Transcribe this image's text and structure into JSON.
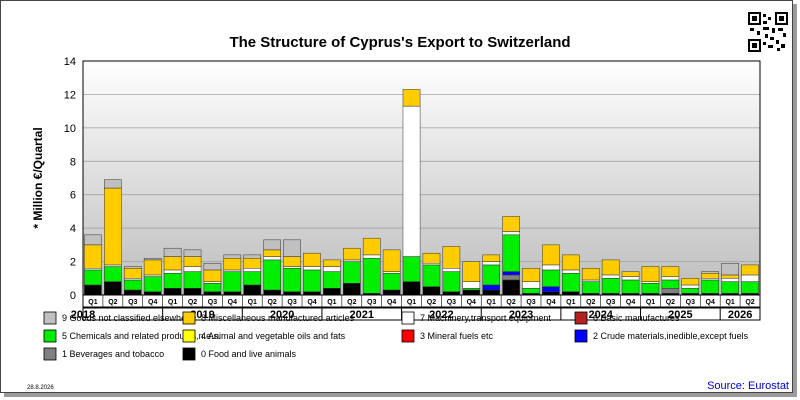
{
  "chart_data": {
    "type": "bar",
    "stacked": true,
    "title": "The Structure of Cyprus's Export to Switzerland",
    "ylabel": "* Million €/Quartal",
    "ylim": [
      0,
      14
    ],
    "yticks": [
      0,
      2,
      4,
      6,
      8,
      10,
      12,
      14
    ],
    "grid": true,
    "legend_position": "bottom",
    "categories": [
      "2018 Q1",
      "2018 Q2",
      "2018 Q3",
      "2018 Q4",
      "2019 Q1",
      "2019 Q2",
      "2019 Q3",
      "2019 Q4",
      "2020 Q1",
      "2020 Q2",
      "2020 Q3",
      "2020 Q4",
      "2021 Q1",
      "2021 Q2",
      "2021 Q3",
      "2021 Q4",
      "2022 Q1",
      "2022 Q2",
      "2022 Q3",
      "2022 Q4",
      "2023 Q1",
      "2023 Q2",
      "2023 Q3",
      "2023 Q4",
      "2024 Q1",
      "2024 Q2",
      "2024 Q3",
      "2024 Q4",
      "2025 Q1",
      "2025 Q2",
      "2025 Q3",
      "2025 Q4",
      "2026 Q1",
      "2026 Q2"
    ],
    "quarter_labels": [
      "Q1",
      "Q2",
      "Q3",
      "Q4",
      "Q1",
      "Q2",
      "Q3",
      "Q4",
      "Q1",
      "Q2",
      "Q3",
      "Q4",
      "Q1",
      "Q2",
      "Q3",
      "Q4",
      "Q1",
      "Q2",
      "Q3",
      "Q4",
      "Q1",
      "Q2",
      "Q3",
      "Q4",
      "Q1",
      "Q2",
      "Q3",
      "Q4",
      "Q1",
      "Q2",
      "Q3",
      "Q4",
      "Q1",
      "Q2"
    ],
    "years": [
      "2018",
      "2019",
      "2020",
      "2021",
      "2022",
      "2023",
      "2024",
      "2025",
      "2026"
    ],
    "series": [
      {
        "name": "0 Food and live animals",
        "color": "#000000",
        "values": [
          0.6,
          0.8,
          0.3,
          0.2,
          0.4,
          0.4,
          0.2,
          0.2,
          0.6,
          0.3,
          0.2,
          0.2,
          0.4,
          0.7,
          0.1,
          0.3,
          0.8,
          0.5,
          0.2,
          0.3,
          0.3,
          0.9,
          0.1,
          0.2,
          0.2,
          0.1,
          0.1,
          0.1,
          0.1,
          0.1,
          0.1,
          0.1,
          0.1,
          0.1
        ]
      },
      {
        "name": "1 Beverages and tobacco",
        "color": "#808080",
        "values": [
          0,
          0,
          0,
          0,
          0,
          0,
          0,
          0,
          0,
          0,
          0,
          0,
          0,
          0,
          0,
          0,
          0,
          0,
          0,
          0,
          0,
          0.3,
          0,
          0,
          0,
          0,
          0,
          0,
          0,
          0.3,
          0,
          0,
          0,
          0
        ]
      },
      {
        "name": "2 Crude materials,inedible,except fuels",
        "color": "#0000ff",
        "values": [
          0,
          0,
          0,
          0,
          0,
          0,
          0,
          0,
          0,
          0,
          0,
          0,
          0,
          0,
          0,
          0,
          0,
          0,
          0,
          0,
          0.3,
          0.2,
          0,
          0.3,
          0,
          0,
          0,
          0,
          0,
          0,
          0,
          0,
          0,
          0
        ]
      },
      {
        "name": "3 Mineral fuels etc",
        "color": "#ff0000",
        "values": [
          0,
          0,
          0,
          0,
          0,
          0,
          0,
          0,
          0,
          0,
          0,
          0,
          0,
          0,
          0,
          0,
          0,
          0,
          0,
          0,
          0,
          0,
          0,
          0,
          0,
          0,
          0,
          0,
          0,
          0,
          0,
          0,
          0,
          0
        ]
      },
      {
        "name": "5 Chemicals and related products,n.e.s.",
        "color": "#00ee00",
        "values": [
          0.9,
          0.9,
          0.6,
          0.9,
          0.9,
          1.0,
          0.5,
          1.2,
          0.8,
          1.8,
          1.4,
          1.3,
          1.0,
          1.3,
          2.1,
          1.0,
          1.5,
          1.3,
          1.2,
          0.1,
          1.2,
          2.2,
          0.3,
          1.0,
          1.1,
          0.7,
          0.9,
          0.8,
          0.6,
          0.5,
          0.3,
          0.8,
          0.7,
          0.7
        ]
      },
      {
        "name": "6 Basic manufactures",
        "color": "#b22222",
        "values": [
          0,
          0,
          0,
          0,
          0,
          0,
          0,
          0,
          0,
          0,
          0,
          0,
          0,
          0,
          0,
          0,
          0,
          0,
          0,
          0,
          0,
          0,
          0,
          0,
          0,
          0,
          0,
          0,
          0,
          0,
          0,
          0,
          0,
          0
        ]
      },
      {
        "name": "7 Machinery,transport equipment",
        "color": "#ffffff",
        "values": [
          0.1,
          0.1,
          0.1,
          0.1,
          0.2,
          0.3,
          0.1,
          0.1,
          0.2,
          0.2,
          0.1,
          0.2,
          0.3,
          0.1,
          0.2,
          0.1,
          9.0,
          0.1,
          0.2,
          0.4,
          0.2,
          0.2,
          0.4,
          0.3,
          0.2,
          0.1,
          0.2,
          0.2,
          0.1,
          0.2,
          0.2,
          0.1,
          0.2,
          0.4
        ]
      },
      {
        "name": "4 Animal and vegetable oils and fats",
        "color": "#ffff00",
        "values": [
          0,
          0,
          0,
          0,
          0,
          0,
          0,
          0,
          0,
          0,
          0,
          0,
          0,
          0,
          0,
          0,
          0,
          0,
          0,
          0,
          0,
          0,
          0,
          0,
          0,
          0,
          0,
          0,
          0,
          0,
          0,
          0,
          0,
          0
        ]
      },
      {
        "name": "8 Miscellaneous manufactured articles",
        "color": "#ffcc00",
        "values": [
          1.4,
          4.6,
          0.6,
          0.9,
          0.8,
          0.6,
          0.7,
          0.7,
          0.6,
          0.4,
          0.6,
          0.8,
          0.4,
          0.7,
          1.0,
          1.3,
          1.0,
          0.6,
          1.3,
          1.2,
          0.4,
          0.9,
          0.8,
          1.2,
          0.9,
          0.7,
          0.9,
          0.3,
          0.9,
          0.6,
          0.4,
          0.3,
          0.2,
          0.6
        ]
      },
      {
        "name": "9 Goods not classified elsewhere",
        "color": "#c0c0c0",
        "values": [
          0.6,
          0.5,
          0.1,
          0.1,
          0.5,
          0.4,
          0.4,
          0.2,
          0.2,
          0.6,
          1.0,
          0,
          0,
          0,
          0,
          0,
          0,
          0,
          0,
          0,
          0,
          0,
          0,
          0,
          0,
          0,
          0,
          0,
          0,
          0,
          0,
          0.1,
          0.7,
          0
        ]
      }
    ],
    "legend": [
      {
        "label": "9 Goods not classified elsewhere",
        "color": "#c0c0c0"
      },
      {
        "label": "8 Miscellaneous manufactured articles",
        "color": "#ffcc00"
      },
      {
        "label": "7 Machinery,transport equipment",
        "color": "#ffffff"
      },
      {
        "label": "6 Basic manufactures",
        "color": "#b22222"
      },
      {
        "label": "5 Chemicals and related products,n.e.s.",
        "color": "#00ee00"
      },
      {
        "label": "4 Animal and vegetable oils and fats",
        "color": "#ffff00"
      },
      {
        "label": "3 Mineral fuels etc",
        "color": "#ff0000"
      },
      {
        "label": "2 Crude materials,inedible,except fuels",
        "color": "#0000ff"
      },
      {
        "label": "1 Beverages and tobacco",
        "color": "#808080"
      },
      {
        "label": "0 Food and live animals",
        "color": "#000000"
      }
    ]
  },
  "footer": {
    "date": "28.8.2026",
    "source": "Source: Eurostat"
  },
  "qr_icon": "qr-code-icon"
}
